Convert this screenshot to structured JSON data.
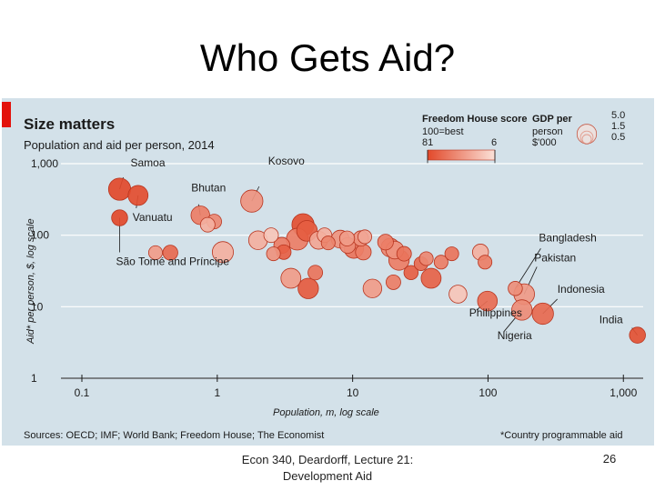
{
  "slide": {
    "title": "Who Gets Aid?",
    "footer_line1": "Econ 340, Deardorff, Lecture 21:",
    "footer_line2": "Development Aid",
    "page_number": "26"
  },
  "colors": {
    "panel_bg": "#d3e1e9",
    "accent_red": "#e3120b",
    "bubble_dark": "#e2492a",
    "bubble_light": "#fbe1d8",
    "bubble_stroke": "#b8351f",
    "grid": "#ffffff",
    "text": "#1a1a1a"
  },
  "chart_data": {
    "type": "scatter",
    "title": "Size matters",
    "subtitle": "Population and aid per person, 2014",
    "xlabel": "Population, m, log scale",
    "ylabel": "Aid* per person, $, log scale",
    "x_scale": "log",
    "y_scale": "log",
    "xlim": [
      0.06,
      1400
    ],
    "ylim": [
      1,
      1000
    ],
    "x_ticks": [
      {
        "value": 0.1,
        "label": "0.1"
      },
      {
        "value": 1,
        "label": "1"
      },
      {
        "value": 10,
        "label": "10"
      },
      {
        "value": 100,
        "label": "100"
      },
      {
        "value": 1000,
        "label": "1,000"
      }
    ],
    "y_ticks": [
      {
        "value": 1,
        "label": "1"
      },
      {
        "value": 10,
        "label": "10"
      },
      {
        "value": 100,
        "label": "100"
      },
      {
        "value": 1000,
        "label": "1,000"
      }
    ],
    "legend": {
      "color_title": "Freedom House score",
      "color_subtitle": "100=best",
      "color_low_label": "81",
      "color_high_label": "6",
      "size_title_1": "GDP per",
      "size_title_2": "person",
      "size_title_3": "$'000",
      "sizes": [
        {
          "label": "5.0",
          "gdp": 5.0
        },
        {
          "label": "1.5",
          "gdp": 1.5
        },
        {
          "label": "0.5",
          "gdp": 0.5
        }
      ]
    },
    "source": "Sources: OECD; IMF; World Bank; Freedom House; The Economist",
    "note": "*Country programmable aid",
    "points": [
      {
        "name": "Samoa",
        "pop": 0.19,
        "aid": 440,
        "gdp": 4.0,
        "freedom": 81,
        "label": "Samoa"
      },
      {
        "name": "Vanuatu",
        "pop": 0.26,
        "aid": 360,
        "gdp": 3.0,
        "freedom": 79,
        "label": "Vanuatu"
      },
      {
        "name": "São Tomé and Príncipe",
        "pop": 0.19,
        "aid": 175,
        "gdp": 1.6,
        "freedom": 81,
        "label": "São Tomé and Príncipe"
      },
      {
        "name": "Bhutan",
        "pop": 0.75,
        "aid": 190,
        "gdp": 2.5,
        "freedom": 55,
        "label": "Bhutan"
      },
      {
        "name": "Kosovo",
        "pop": 1.8,
        "aid": 300,
        "gdp": 4.0,
        "freedom": 44,
        "label": "Kosovo"
      },
      {
        "name": "Bangladesh",
        "pop": 159,
        "aid": 18,
        "gdp": 1.1,
        "freedom": 47,
        "label": "Bangladesh"
      },
      {
        "name": "Pakistan",
        "pop": 185,
        "aid": 15,
        "gdp": 3.3,
        "freedom": 41,
        "label": "Pakistan"
      },
      {
        "name": "Indonesia",
        "pop": 254,
        "aid": 8,
        "gdp": 3.6,
        "freedom": 65,
        "label": "Indonesia"
      },
      {
        "name": "India",
        "pop": 1270,
        "aid": 4,
        "gdp": 1.6,
        "freedom": 77,
        "label": "India"
      },
      {
        "name": "Philippines",
        "pop": 99,
        "aid": 12,
        "gdp": 2.9,
        "freedom": 63,
        "label": "Philippines"
      },
      {
        "name": "Nigeria",
        "pop": 178,
        "aid": 9,
        "gdp": 3.2,
        "freedom": 48,
        "label": "Nigeria"
      },
      {
        "name": "a1",
        "pop": 0.95,
        "aid": 155,
        "gdp": 1.2,
        "freedom": 50,
        "label": ""
      },
      {
        "name": "a2",
        "pop": 1.1,
        "aid": 58,
        "gdp": 3.5,
        "freedom": 30,
        "label": ""
      },
      {
        "name": "a3",
        "pop": 2.6,
        "aid": 55,
        "gdp": 1.0,
        "freedom": 45,
        "label": ""
      },
      {
        "name": "a4",
        "pop": 3.1,
        "aid": 58,
        "gdp": 1.2,
        "freedom": 70,
        "label": ""
      },
      {
        "name": "a5",
        "pop": 3.9,
        "aid": 88,
        "gdp": 3.8,
        "freedom": 55,
        "label": ""
      },
      {
        "name": "a6",
        "pop": 4.3,
        "aid": 140,
        "gdp": 4.0,
        "freedom": 78,
        "label": ""
      },
      {
        "name": "a7",
        "pop": 4.6,
        "aid": 115,
        "gdp": 3.3,
        "freedom": 71,
        "label": ""
      },
      {
        "name": "a8",
        "pop": 5.6,
        "aid": 85,
        "gdp": 2.2,
        "freedom": 35,
        "label": ""
      },
      {
        "name": "a9",
        "pop": 6.2,
        "aid": 100,
        "gdp": 1.2,
        "freedom": 30,
        "label": ""
      },
      {
        "name": "a10",
        "pop": 6.6,
        "aid": 78,
        "gdp": 1.0,
        "freedom": 52,
        "label": ""
      },
      {
        "name": "a11",
        "pop": 8.1,
        "aid": 88,
        "gdp": 2.2,
        "freedom": 45,
        "label": ""
      },
      {
        "name": "a12",
        "pop": 9.1,
        "aid": 90,
        "gdp": 1.3,
        "freedom": 40,
        "label": ""
      },
      {
        "name": "a13",
        "pop": 11.5,
        "aid": 90,
        "gdp": 1.4,
        "freedom": 45,
        "label": ""
      },
      {
        "name": "a14",
        "pop": 12.3,
        "aid": 95,
        "gdp": 1.0,
        "freedom": 35,
        "label": ""
      },
      {
        "name": "a15",
        "pop": 10.2,
        "aid": 65,
        "gdp": 2.8,
        "freedom": 60,
        "label": ""
      },
      {
        "name": "a16",
        "pop": 9.2,
        "aid": 72,
        "gdp": 1.5,
        "freedom": 48,
        "label": ""
      },
      {
        "name": "a17",
        "pop": 17.5,
        "aid": 80,
        "gdp": 1.5,
        "freedom": 55,
        "label": ""
      },
      {
        "name": "a18",
        "pop": 19,
        "aid": 67,
        "gdp": 2.5,
        "freedom": 50,
        "label": ""
      },
      {
        "name": "a19",
        "pop": 20.5,
        "aid": 62,
        "gdp": 2.2,
        "freedom": 45,
        "label": ""
      },
      {
        "name": "a20",
        "pop": 22,
        "aid": 45,
        "gdp": 3.2,
        "freedom": 55,
        "label": ""
      },
      {
        "name": "a21",
        "pop": 24,
        "aid": 55,
        "gdp": 1.2,
        "freedom": 60,
        "label": ""
      },
      {
        "name": "a22",
        "pop": 27,
        "aid": 30,
        "gdp": 1.1,
        "freedom": 70,
        "label": ""
      },
      {
        "name": "a23",
        "pop": 32,
        "aid": 40,
        "gdp": 1.0,
        "freedom": 65,
        "label": ""
      },
      {
        "name": "a24",
        "pop": 35,
        "aid": 47,
        "gdp": 1.0,
        "freedom": 50,
        "label": ""
      },
      {
        "name": "a25",
        "pop": 45,
        "aid": 42,
        "gdp": 1.0,
        "freedom": 55,
        "label": ""
      },
      {
        "name": "a26",
        "pop": 54,
        "aid": 55,
        "gdp": 1.0,
        "freedom": 60,
        "label": ""
      },
      {
        "name": "a27",
        "pop": 88,
        "aid": 58,
        "gdp": 1.6,
        "freedom": 30,
        "label": ""
      },
      {
        "name": "a28",
        "pop": 95,
        "aid": 42,
        "gdp": 1.0,
        "freedom": 55,
        "label": ""
      },
      {
        "name": "a29",
        "pop": 14,
        "aid": 18,
        "gdp": 2.5,
        "freedom": 40,
        "label": ""
      },
      {
        "name": "a30",
        "pop": 20,
        "aid": 22,
        "gdp": 1.2,
        "freedom": 55,
        "label": ""
      },
      {
        "name": "a31",
        "pop": 38,
        "aid": 25,
        "gdp": 3.0,
        "freedom": 68,
        "label": ""
      },
      {
        "name": "a32",
        "pop": 3.5,
        "aid": 25,
        "gdp": 3.0,
        "freedom": 40,
        "label": ""
      },
      {
        "name": "a33",
        "pop": 4.7,
        "aid": 18,
        "gdp": 3.2,
        "freedom": 72,
        "label": ""
      },
      {
        "name": "a34",
        "pop": 5.3,
        "aid": 30,
        "gdp": 1.2,
        "freedom": 60,
        "label": ""
      },
      {
        "name": "a35",
        "pop": 2.0,
        "aid": 85,
        "gdp": 2.5,
        "freedom": 30,
        "label": ""
      },
      {
        "name": "a36",
        "pop": 0.35,
        "aid": 57,
        "gdp": 1.0,
        "freedom": 40,
        "label": ""
      },
      {
        "name": "a37",
        "pop": 0.45,
        "aid": 57,
        "gdp": 1.3,
        "freedom": 65,
        "label": ""
      },
      {
        "name": "a38",
        "pop": 0.85,
        "aid": 140,
        "gdp": 1.2,
        "freedom": 30,
        "label": ""
      },
      {
        "name": "a39",
        "pop": 2.5,
        "aid": 100,
        "gdp": 1.2,
        "freedom": 20,
        "label": ""
      },
      {
        "name": "a40",
        "pop": 3.0,
        "aid": 72,
        "gdp": 1.6,
        "freedom": 55,
        "label": ""
      },
      {
        "name": "a41",
        "pop": 12,
        "aid": 58,
        "gdp": 1.5,
        "freedom": 55,
        "label": ""
      },
      {
        "name": "a42",
        "pop": 60,
        "aid": 15,
        "gdp": 2.2,
        "freedom": 20,
        "label": ""
      }
    ]
  }
}
